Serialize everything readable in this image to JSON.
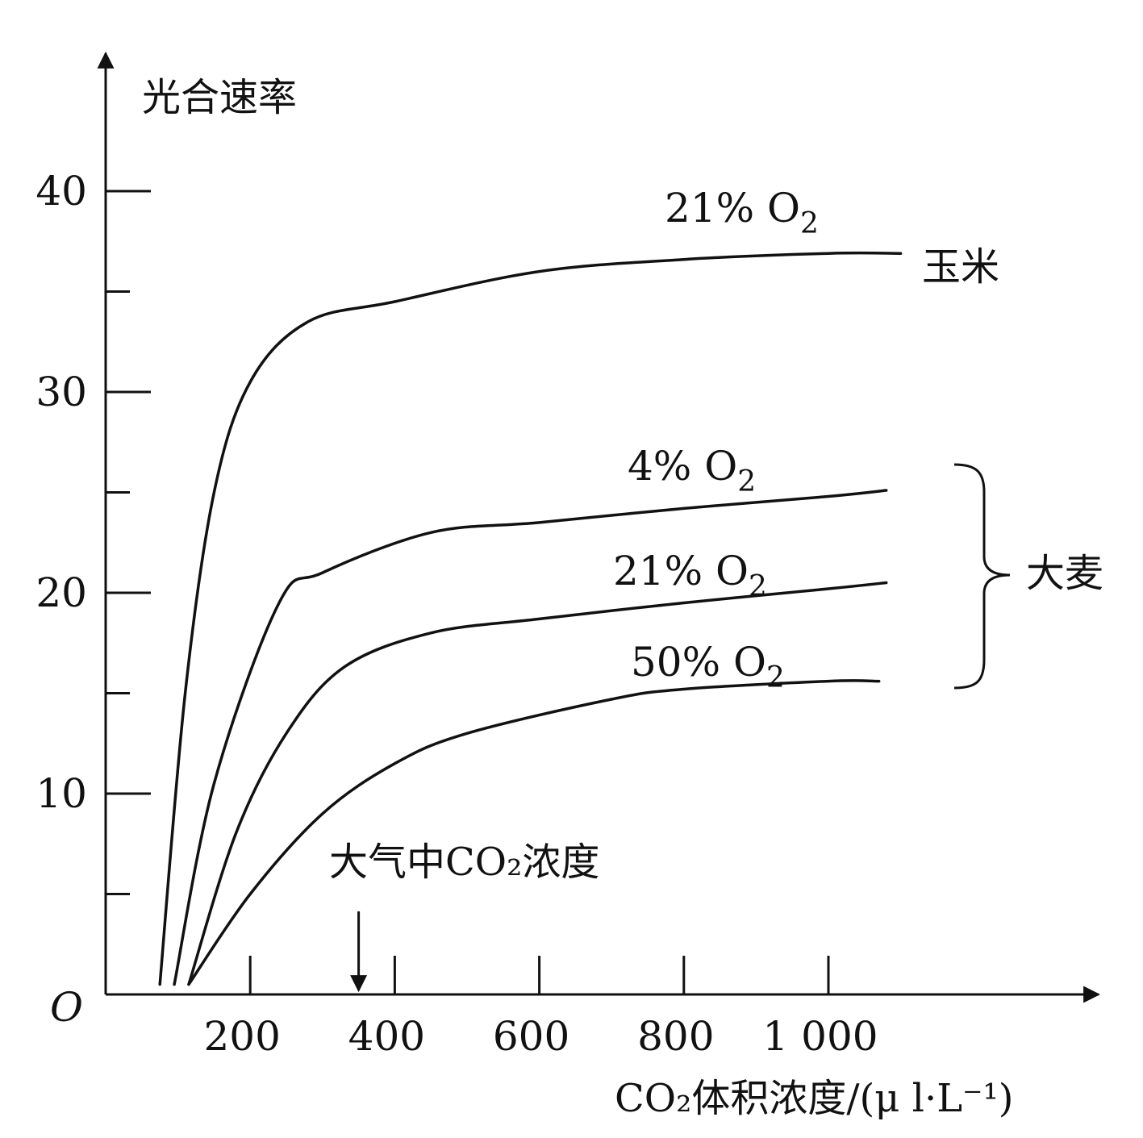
{
  "chart_data": {
    "type": "line",
    "ylabel": "光合速率",
    "xlabel": "CO₂体积浓度/(μ l·L⁻¹)",
    "origin_label": "O",
    "xlim": [
      0,
      1200
    ],
    "ylim": [
      0,
      45
    ],
    "x_ticks": [
      200,
      400,
      600,
      800,
      1000
    ],
    "x_tick_labels": [
      "200",
      "400",
      "600",
      "800",
      "1 000"
    ],
    "y_ticks": [
      10,
      20,
      30,
      40
    ],
    "y_tick_labels": [
      "10",
      "20",
      "30",
      "40"
    ],
    "y_minor_ticks": [
      5,
      15,
      25,
      35
    ],
    "legend": "none",
    "grid": false,
    "series": [
      {
        "label_text": "21% O₂",
        "group": "玉米",
        "points": [
          [
            75,
            0.5
          ],
          [
            110,
            15
          ],
          [
            150,
            25
          ],
          [
            200,
            30.5
          ],
          [
            280,
            33.5
          ],
          [
            400,
            34.5
          ],
          [
            600,
            36
          ],
          [
            800,
            36.6
          ],
          [
            1000,
            36.9
          ],
          [
            1100,
            36.9
          ]
        ]
      },
      {
        "label_text": "4% O₂",
        "group": "大麦",
        "points": [
          [
            95,
            0.5
          ],
          [
            150,
            10.5
          ],
          [
            240,
            19.5
          ],
          [
            300,
            21
          ],
          [
            450,
            23
          ],
          [
            600,
            23.5
          ],
          [
            800,
            24.2
          ],
          [
            1000,
            24.8
          ],
          [
            1080,
            25.1
          ]
        ]
      },
      {
        "label_text": "21% O₂",
        "group": "大麦",
        "points": [
          [
            115,
            0.5
          ],
          [
            180,
            8
          ],
          [
            250,
            13
          ],
          [
            330,
            16.3
          ],
          [
            450,
            18
          ],
          [
            600,
            18.7
          ],
          [
            800,
            19.5
          ],
          [
            1000,
            20.2
          ],
          [
            1080,
            20.5
          ]
        ]
      },
      {
        "label_text": "50% O₂",
        "group": "大麦",
        "points": [
          [
            115,
            0.5
          ],
          [
            200,
            5
          ],
          [
            300,
            9
          ],
          [
            400,
            11.5
          ],
          [
            500,
            13
          ],
          [
            700,
            14.7
          ],
          [
            800,
            15.2
          ],
          [
            1000,
            15.6
          ],
          [
            1070,
            15.6
          ]
        ]
      }
    ],
    "groups": [
      {
        "name": "玉米"
      },
      {
        "name": "大麦"
      }
    ],
    "annotation": {
      "text": "大气中CO₂浓度",
      "x": 350
    }
  }
}
